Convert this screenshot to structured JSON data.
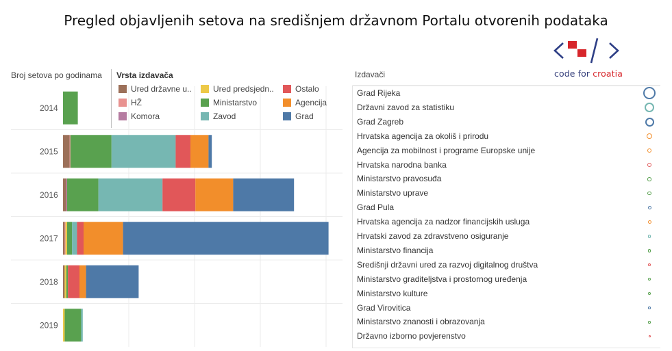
{
  "title": "Pregled objavljenih setova na središnjem državnom Portalu otvorenih podataka",
  "logo": {
    "text_main": "code for ",
    "text_accent": "croatia"
  },
  "colors": {
    "Ured državne uprave": "#9c7059",
    "HŽ": "#e8918f",
    "Komora": "#b57ba0",
    "Ured predsjednika": "#edc948",
    "Ministarstvo": "#59a14f",
    "Zavod": "#76b7b2",
    "Ostalo": "#e15759",
    "Agencija": "#f28e2b",
    "Grad": "#4e79a7"
  },
  "legend": {
    "title": "Vrsta izdavača",
    "items": [
      {
        "label": "Ured državne u..",
        "key": "Ured državne uprave"
      },
      {
        "label": "Ured predsjedn..",
        "key": "Ured predsjednika"
      },
      {
        "label": "Ostalo",
        "key": "Ostalo"
      },
      {
        "label": "HŽ",
        "key": "HŽ"
      },
      {
        "label": "Ministarstvo",
        "key": "Ministarstvo"
      },
      {
        "label": "Agencija",
        "key": "Agencija"
      },
      {
        "label": "Komora",
        "key": "Komora"
      },
      {
        "label": "Zavod",
        "key": "Zavod"
      },
      {
        "label": "Grad",
        "key": "Grad"
      }
    ]
  },
  "chart_data": [
    {
      "type": "bar",
      "orientation": "horizontal",
      "stacked": true,
      "title": "Broj setova po godinama",
      "categories": [
        "2014",
        "2015",
        "2016",
        "2017",
        "2018",
        "2019"
      ],
      "series": [
        {
          "name": "Ured državne uprave",
          "values": [
            0,
            4,
            2,
            1,
            1,
            0
          ]
        },
        {
          "name": "HŽ",
          "values": [
            0,
            0.5,
            0,
            0.5,
            0,
            0
          ]
        },
        {
          "name": "Komora",
          "values": [
            0,
            0,
            0.5,
            0,
            0,
            0
          ]
        },
        {
          "name": "Ured predsjednika",
          "values": [
            0,
            0,
            0,
            1,
            1,
            1
          ]
        },
        {
          "name": "Ministarstvo",
          "values": [
            9,
            25,
            19,
            3,
            1,
            10
          ]
        },
        {
          "name": "Zavod",
          "values": [
            0,
            39,
            39,
            3,
            0,
            1
          ]
        },
        {
          "name": "Ostalo",
          "values": [
            0,
            9,
            20,
            4,
            7,
            0
          ]
        },
        {
          "name": "Agencija",
          "values": [
            0,
            11,
            23,
            24,
            4,
            0
          ]
        },
        {
          "name": "Grad",
          "values": [
            0,
            2,
            37,
            125,
            32,
            0
          ]
        }
      ],
      "grid": true,
      "xlim": [
        0,
        170
      ]
    },
    {
      "type": "scatter",
      "title": "Izdavači",
      "categories": [
        "Grad Rijeka",
        "Državni zavod za statistiku",
        "Grad Zagreb",
        "Hrvatska agencija za okoliš i prirodu",
        "Agencija za mobilnost i programe Europske unije",
        "Hrvatska narodna banka",
        "Ministarstvo pravosuđa",
        "Ministarstvo uprave",
        "Grad Pula",
        "Hrvatska agencija za nadzor financijskih usluga",
        "Hrvatski zavod za zdravstveno osiguranje",
        "Ministarstvo financija",
        "Središnji državni ured za razvoj digitalnog društva",
        "Ministarstvo graditeljstva i prostornog uređenja",
        "Ministarstvo kulture",
        "Grad Virovitica",
        "Ministarstvo znanosti i obrazovanja",
        "Državno izborno povjerenstvo"
      ],
      "types": [
        "Grad",
        "Zavod",
        "Grad",
        "Agencija",
        "Agencija",
        "Ostalo",
        "Ministarstvo",
        "Ministarstvo",
        "Grad",
        "Agencija",
        "Zavod",
        "Ministarstvo",
        "Ostalo",
        "Ministarstvo",
        "Ministarstvo",
        "Grad",
        "Ministarstvo",
        "Ostalo"
      ],
      "sizes": [
        36,
        28,
        26,
        16,
        12,
        12,
        11,
        11,
        10,
        10,
        9,
        9,
        9,
        8,
        8,
        7,
        7,
        6
      ]
    }
  ]
}
